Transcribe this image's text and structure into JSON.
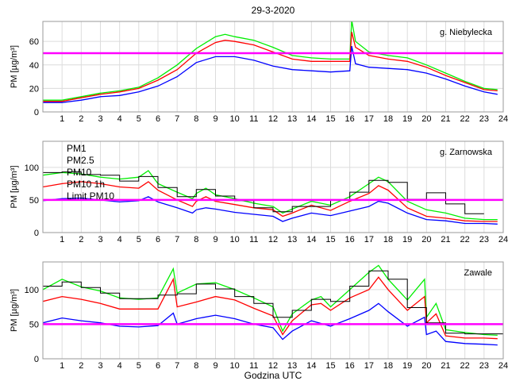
{
  "chart_data": {
    "type": "line",
    "title": "29-3-2020",
    "xlabel": "Godzina UTC",
    "ylabel": "PM [µg/m³]",
    "xlim": [
      0,
      24
    ],
    "x_ticks": [
      "1",
      "2",
      "3",
      "4",
      "5",
      "6",
      "7",
      "8",
      "9",
      "10",
      "11",
      "12",
      "13",
      "14",
      "15",
      "16",
      "17",
      "18",
      "19",
      "20",
      "21",
      "22",
      "23",
      "24"
    ],
    "grid": true,
    "colors": {
      "PM1": "#0000ff",
      "PM2.5": "#ff0000",
      "PM10": "#00ee00",
      "PM10 1h": "#000000",
      "Limit PM10": "#ff00ff"
    },
    "legend": {
      "placement": "top-left",
      "panel": 1,
      "entries": [
        "PM1",
        "PM2.5",
        "PM10",
        "PM10 1h",
        "Limit PM10"
      ]
    },
    "limit_value": 50,
    "panels": [
      {
        "station": "g. Niebylecka",
        "ylim": [
          0,
          77
        ],
        "y_ticks": [
          "0",
          "20",
          "40",
          "60"
        ],
        "y_tick_values": [
          0,
          20,
          40,
          60
        ],
        "series": [
          {
            "name": "PM1",
            "x": [
              0,
              1,
              2,
              3,
              4,
              5,
              6,
              7,
              8,
              9,
              10,
              11,
              12,
              13,
              14,
              15,
              16,
              16.1,
              16.3,
              17,
              18,
              19,
              20,
              21,
              22,
              23,
              23.7
            ],
            "y": [
              8,
              8,
              10,
              13,
              14,
              17,
              22,
              30,
              42,
              47,
              47,
              44,
              39,
              36,
              35,
              34,
              35,
              56,
              41,
              38,
              37,
              36,
              33,
              28,
              22,
              17,
              15
            ]
          },
          {
            "name": "PM2.5",
            "x": [
              0,
              1,
              2,
              3,
              4,
              5,
              6,
              7,
              8,
              9,
              9.5,
              10,
              11,
              12,
              13,
              14,
              15,
              16,
              16.1,
              16.3,
              17,
              18,
              19,
              20,
              21,
              22,
              23,
              23.7
            ],
            "y": [
              9,
              9,
              12,
              15,
              17,
              20,
              27,
              36,
              50,
              59,
              61,
              60,
              57,
              51,
              45,
              43,
              43,
              43,
              68,
              55,
              48,
              45,
              43,
              38,
              31,
              25,
              19,
              18
            ]
          },
          {
            "name": "PM10",
            "x": [
              0,
              1,
              2,
              3,
              4,
              5,
              6,
              7,
              8,
              9,
              9.5,
              10,
              11,
              12,
              13,
              14,
              15,
              16,
              16.1,
              16.3,
              17,
              18,
              19,
              20,
              21,
              22,
              23,
              23.7
            ],
            "y": [
              10,
              10,
              13,
              16,
              18,
              21,
              29,
              40,
              54,
              64,
              66,
              64,
              61,
              55,
              48,
              46,
              45,
              45,
              78,
              60,
              51,
              48,
              46,
              40,
              33,
              26,
              20,
              19
            ]
          }
        ],
        "hourly": []
      },
      {
        "station": "g. Zarnowska",
        "ylim": [
          0,
          140
        ],
        "y_ticks": [
          "0",
          "50",
          "100"
        ],
        "y_tick_values": [
          0,
          50,
          100
        ],
        "series": [
          {
            "name": "PM1",
            "x": [
              0,
              1,
              2,
              3,
              4,
              5,
              5.5,
              6,
              7,
              7.8,
              8,
              8.5,
              9,
              10,
              11,
              12,
              12.5,
              13,
              14,
              15,
              16,
              17,
              17.5,
              18,
              19,
              20,
              21,
              22,
              23,
              23.7
            ],
            "y": [
              49,
              52,
              53,
              50,
              47,
              49,
              55,
              47,
              38,
              30,
              35,
              38,
              36,
              31,
              28,
              25,
              17,
              22,
              30,
              26,
              33,
              40,
              48,
              45,
              30,
              20,
              18,
              14,
              14,
              13
            ]
          },
          {
            "name": "PM2.5",
            "x": [
              0,
              1,
              2,
              3,
              4,
              5,
              5.5,
              6,
              7,
              7.8,
              8,
              8.5,
              9,
              10,
              11,
              12,
              12.5,
              13,
              14,
              15,
              16,
              17,
              17.5,
              18,
              19,
              20,
              21,
              22,
              23,
              23.7
            ],
            "y": [
              70,
              75,
              78,
              75,
              70,
              68,
              78,
              65,
              50,
              40,
              48,
              55,
              48,
              43,
              38,
              35,
              25,
              30,
              42,
              34,
              48,
              60,
              72,
              65,
              38,
              25,
              22,
              18,
              17,
              17
            ]
          },
          {
            "name": "PM10",
            "x": [
              0,
              1,
              2,
              3,
              4,
              5,
              5.5,
              6,
              7,
              7.8,
              8,
              8.5,
              9,
              10,
              11,
              12,
              12.5,
              13,
              14,
              15,
              16,
              17,
              17.5,
              18,
              19,
              20,
              21,
              22,
              23,
              23.7
            ],
            "y": [
              88,
              92,
              90,
              85,
              82,
              85,
              95,
              75,
              62,
              52,
              60,
              68,
              58,
              52,
              45,
              40,
              30,
              36,
              48,
              42,
              55,
              75,
              85,
              78,
              48,
              35,
              30,
              22,
              20,
              20
            ]
          }
        ],
        "hourly": [
          92,
          93,
          89,
          88,
          79,
          86,
          69,
          55,
          66,
          56,
          49,
          38,
          32,
          40,
          40,
          50,
          62,
          80,
          77,
          51,
          61,
          44,
          29
        ]
      },
      {
        "station": "Zawale",
        "ylim": [
          0,
          140
        ],
        "y_ticks": [
          "0",
          "50",
          "100"
        ],
        "y_tick_values": [
          0,
          50,
          100
        ],
        "series": [
          {
            "name": "PM1",
            "x": [
              0,
              1,
              2,
              3,
              4,
              5,
              6,
              6.8,
              7,
              8,
              9,
              10,
              11,
              12,
              12.5,
              13,
              14,
              15,
              16,
              17,
              17.5,
              18,
              19,
              19.9,
              20,
              20.5,
              21,
              22,
              23,
              23.7
            ],
            "y": [
              52,
              59,
              55,
              52,
              47,
              46,
              48,
              66,
              50,
              58,
              63,
              58,
              50,
              45,
              28,
              40,
              55,
              47,
              58,
              70,
              80,
              68,
              47,
              60,
              35,
              40,
              25,
              22,
              21,
              20
            ]
          },
          {
            "name": "PM2.5",
            "x": [
              0,
              1,
              2,
              3,
              4,
              5,
              6,
              6.8,
              7,
              8,
              9,
              10,
              11,
              12,
              12.5,
              13,
              14,
              14.5,
              15,
              16,
              17,
              17.5,
              18,
              19,
              19.9,
              20,
              20.5,
              21,
              22,
              23,
              23.7
            ],
            "y": [
              83,
              90,
              86,
              80,
              72,
              72,
              72,
              115,
              75,
              82,
              90,
              85,
              73,
              62,
              35,
              55,
              78,
              80,
              70,
              88,
              100,
              118,
              100,
              70,
              90,
              52,
              65,
              33,
              30,
              30,
              29
            ]
          },
          {
            "name": "PM10",
            "x": [
              0,
              1,
              2,
              3,
              4,
              5,
              6,
              6.8,
              7,
              8,
              9,
              10,
              11,
              12,
              12.5,
              13,
              14,
              14.5,
              15,
              16,
              17,
              17.5,
              18,
              19,
              19.9,
              20,
              20.5,
              21,
              22,
              23,
              23.7
            ],
            "y": [
              100,
              115,
              104,
              98,
              88,
              86,
              88,
              130,
              95,
              108,
              110,
              100,
              88,
              75,
              40,
              65,
              85,
              90,
              75,
              100,
              125,
              135,
              115,
              85,
              115,
              60,
              80,
              42,
              38,
              35,
              34
            ]
          }
        ],
        "hourly": [
          105,
          111,
          103,
          95,
          87,
          87,
          92,
          94,
          108,
          101,
          90,
          80,
          60,
          70,
          86,
          83,
          105,
          127,
          115,
          74,
          52,
          37,
          36,
          36
        ]
      }
    ]
  }
}
